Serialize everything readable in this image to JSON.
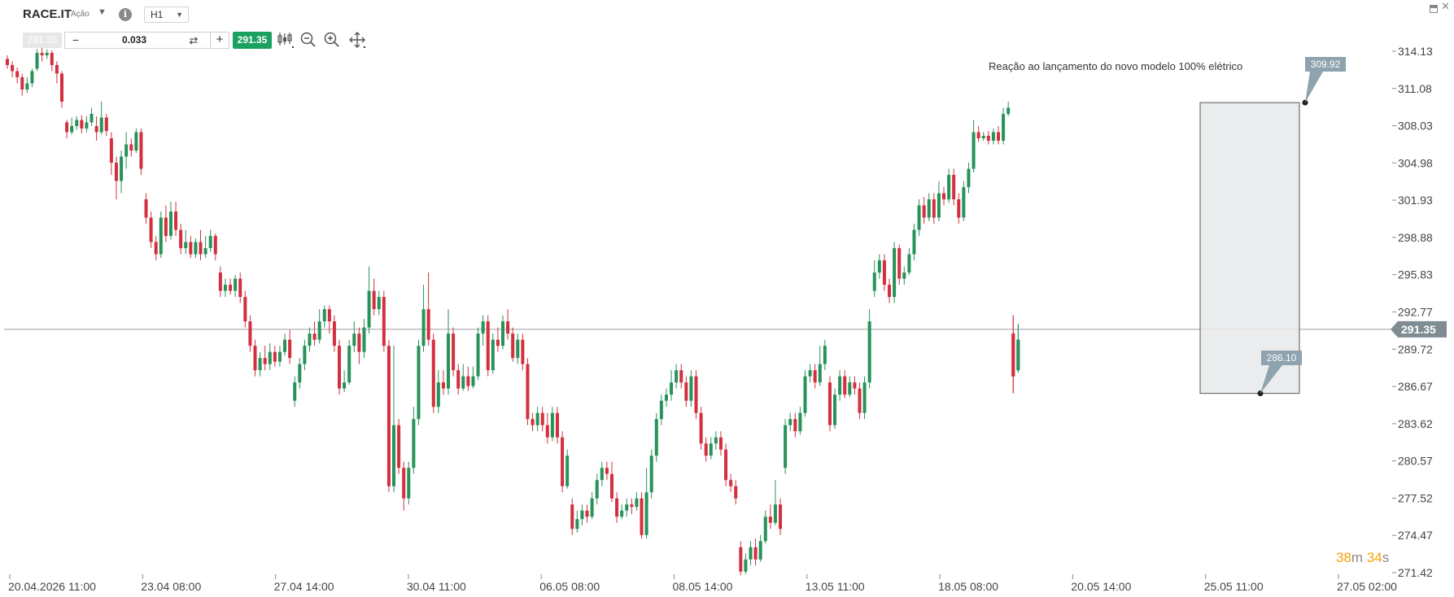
{
  "instrument": {
    "symbol": "RACE.IT",
    "asset_type": "Ação",
    "timeframe": "H1"
  },
  "trade_panel": {
    "bid_price": "291.35",
    "quantity": "0.033",
    "minus_label": "−",
    "plus_label": "+",
    "swap_glyph": "⇄",
    "ask_price": "291.35"
  },
  "tools": [
    {
      "name": "chart-type-icon"
    },
    {
      "name": "zoom-out-icon"
    },
    {
      "name": "zoom-in-icon"
    },
    {
      "name": "pan-crosshair-icon"
    }
  ],
  "countdown": {
    "minutes": "38",
    "m": "m",
    "seconds": "34",
    "s": "s"
  },
  "colors": {
    "up": "#27925a",
    "down": "#d32f3e",
    "price_line": "#9e9e9e",
    "price_tag": "#7f8c93",
    "label_box": "#8ea3ad",
    "rect_fill": "#e7e9ea",
    "ask_green": "#1aa05f"
  },
  "annotation": {
    "text": "Reação ao lançamento do novo modelo 100% elétrico",
    "top_price_label": "309.92",
    "bottom_price_label": "286.10",
    "top": 309.92,
    "bottom": 286.1
  },
  "chart_data": {
    "type": "candlestick",
    "title": "",
    "current_price": 291.35,
    "current_price_label": "291.35",
    "y_ticks": [
      "314.13",
      "311.08",
      "308.03",
      "304.98",
      "301.93",
      "298.88",
      "295.83",
      "292.77",
      "289.72",
      "286.67",
      "283.62",
      "280.57",
      "277.52",
      "274.47",
      "271.42"
    ],
    "x_ticks": [
      "20.04.2026 11:00",
      "23.04 08:00",
      "27.04 14:00",
      "30.04 11:00",
      "06.05 08:00",
      "08.05 14:00",
      "13.05 11:00",
      "18.05 08:00",
      "20.05 14:00",
      "25.05 11:00",
      "27.05 02:00"
    ],
    "ylim": [
      271.42,
      314.13
    ],
    "candles": [
      [
        313.5,
        313.0,
        313.8,
        312.7
      ],
      [
        313.0,
        312.5,
        313.3,
        312.0
      ],
      [
        312.5,
        312.0,
        312.8,
        311.5
      ],
      [
        312.0,
        311.0,
        312.3,
        310.5
      ],
      [
        311.0,
        311.5,
        312.0,
        310.7
      ],
      [
        311.5,
        312.5,
        312.7,
        311.2
      ],
      [
        312.7,
        314.0,
        314.3,
        312.5
      ],
      [
        314.0,
        313.8,
        314.4,
        313.3
      ],
      [
        313.8,
        314.0,
        314.3,
        313.5
      ],
      [
        314.0,
        313.0,
        314.2,
        312.5
      ],
      [
        313.0,
        312.3,
        313.3,
        311.5
      ],
      [
        312.3,
        310.0,
        312.5,
        309.5
      ],
      [
        308.3,
        307.5,
        308.5,
        307.0
      ],
      [
        307.5,
        308.0,
        308.7,
        307.3
      ],
      [
        308.0,
        308.5,
        308.8,
        307.7
      ],
      [
        308.5,
        307.8,
        308.9,
        307.4
      ],
      [
        307.8,
        308.3,
        308.8,
        307.5
      ],
      [
        308.3,
        309.0,
        309.5,
        308.0
      ],
      [
        308.0,
        307.5,
        308.8,
        306.8
      ],
      [
        307.5,
        308.7,
        310.0,
        307.3
      ],
      [
        308.7,
        307.6,
        309.0,
        307.2
      ],
      [
        307.0,
        305.0,
        307.5,
        304.0
      ],
      [
        305.0,
        303.5,
        305.5,
        302.0
      ],
      [
        303.5,
        305.5,
        306.0,
        302.5
      ],
      [
        305.5,
        306.5,
        307.5,
        304.5
      ],
      [
        306.5,
        306.0,
        307.0,
        305.5
      ],
      [
        306.0,
        307.5,
        307.8,
        305.8
      ],
      [
        307.5,
        304.5,
        307.8,
        304.0
      ],
      [
        302.0,
        300.5,
        302.5,
        300.0
      ],
      [
        300.5,
        298.5,
        301.0,
        298.0
      ],
      [
        298.5,
        297.5,
        299.0,
        297.0
      ],
      [
        297.5,
        300.5,
        301.0,
        297.2
      ],
      [
        300.5,
        299.0,
        301.5,
        298.5
      ],
      [
        299.0,
        301.0,
        301.8,
        298.7
      ],
      [
        301.0,
        299.5,
        301.8,
        299.0
      ],
      [
        299.5,
        298.0,
        300.0,
        297.5
      ],
      [
        298.0,
        298.5,
        299.5,
        297.5
      ],
      [
        298.5,
        297.5,
        299.0,
        297.2
      ],
      [
        297.5,
        298.5,
        298.8,
        297.2
      ],
      [
        298.5,
        297.5,
        299.5,
        297.0
      ],
      [
        297.5,
        298.0,
        299.0,
        297.2
      ],
      [
        298.0,
        299.0,
        299.5,
        297.7
      ],
      [
        299.0,
        297.5,
        299.2,
        297.0
      ],
      [
        296.0,
        294.5,
        296.5,
        294.0
      ],
      [
        294.5,
        295.0,
        295.5,
        294.0
      ],
      [
        295.0,
        294.5,
        295.5,
        294.2
      ],
      [
        294.5,
        295.5,
        295.8,
        294.0
      ],
      [
        295.5,
        294.0,
        296.0,
        293.5
      ],
      [
        294.0,
        292.0,
        294.5,
        291.5
      ],
      [
        292.0,
        290.0,
        292.5,
        289.5
      ],
      [
        290.0,
        288.0,
        290.5,
        287.5
      ],
      [
        288.0,
        289.0,
        289.5,
        287.5
      ],
      [
        289.0,
        288.5,
        290.0,
        288.0
      ],
      [
        288.5,
        289.5,
        290.2,
        288.0
      ],
      [
        289.5,
        288.7,
        290.0,
        288.3
      ],
      [
        288.7,
        289.5,
        290.0,
        288.3
      ],
      [
        289.5,
        290.5,
        291.0,
        289.2
      ],
      [
        290.5,
        289.0,
        291.3,
        288.5
      ],
      [
        285.5,
        287.0,
        287.5,
        285.0
      ],
      [
        287.0,
        288.5,
        289.0,
        286.5
      ],
      [
        288.5,
        290.0,
        290.5,
        288.0
      ],
      [
        290.0,
        291.0,
        291.5,
        289.5
      ],
      [
        291.0,
        290.5,
        292.0,
        290.0
      ],
      [
        290.5,
        292.0,
        293.0,
        290.2
      ],
      [
        292.0,
        293.0,
        293.3,
        291.5
      ],
      [
        293.0,
        292.0,
        293.3,
        291.0
      ],
      [
        292.0,
        290.0,
        292.5,
        289.5
      ],
      [
        290.0,
        286.5,
        290.5,
        286.0
      ],
      [
        286.5,
        287.0,
        288.0,
        286.2
      ],
      [
        287.0,
        290.0,
        290.5,
        286.8
      ],
      [
        290.0,
        291.0,
        292.0,
        289.5
      ],
      [
        291.0,
        289.5,
        291.5,
        288.5
      ],
      [
        289.5,
        291.5,
        292.2,
        289.0
      ],
      [
        291.5,
        294.5,
        296.5,
        291.0
      ],
      [
        294.5,
        293.0,
        295.5,
        292.5
      ],
      [
        293.0,
        294.0,
        294.5,
        292.5
      ],
      [
        294.0,
        290.0,
        294.5,
        289.5
      ],
      [
        290.0,
        278.5,
        290.5,
        278.0
      ],
      [
        278.5,
        283.5,
        290.0,
        278.0
      ],
      [
        283.5,
        280.0,
        284.0,
        279.5
      ],
      [
        280.0,
        277.5,
        280.5,
        276.5
      ],
      [
        277.5,
        280.0,
        280.5,
        277.0
      ],
      [
        280.0,
        284.0,
        285.0,
        279.5
      ],
      [
        284.0,
        290.0,
        290.5,
        283.5
      ],
      [
        290.0,
        293.0,
        295.0,
        289.5
      ],
      [
        293.0,
        290.5,
        296.0,
        290.0
      ],
      [
        290.5,
        285.0,
        291.0,
        284.5
      ],
      [
        285.0,
        287.0,
        288.0,
        284.5
      ],
      [
        287.0,
        286.5,
        288.0,
        286.0
      ],
      [
        286.5,
        291.0,
        293.0,
        286.0
      ],
      [
        291.0,
        288.0,
        291.5,
        287.5
      ],
      [
        288.0,
        286.5,
        288.5,
        286.0
      ],
      [
        286.5,
        287.5,
        288.5,
        286.3
      ],
      [
        287.5,
        286.7,
        288.3,
        286.3
      ],
      [
        286.7,
        287.5,
        288.3,
        286.5
      ],
      [
        287.5,
        291.0,
        291.5,
        287.2
      ],
      [
        291.0,
        292.0,
        292.5,
        290.0
      ],
      [
        292.0,
        288.0,
        292.5,
        287.5
      ],
      [
        288.0,
        290.5,
        291.0,
        287.7
      ],
      [
        290.5,
        290.0,
        291.5,
        289.5
      ],
      [
        290.0,
        292.0,
        292.5,
        289.7
      ],
      [
        292.0,
        291.0,
        293.0,
        290.5
      ],
      [
        291.0,
        289.0,
        291.5,
        288.7
      ],
      [
        289.0,
        290.5,
        291.0,
        288.5
      ],
      [
        290.5,
        288.5,
        291.0,
        288.0
      ],
      [
        288.5,
        284.0,
        289.0,
        283.5
      ],
      [
        284.0,
        283.5,
        284.5,
        283.0
      ],
      [
        283.5,
        284.5,
        285.0,
        283.0
      ],
      [
        284.5,
        283.5,
        285.0,
        283.0
      ],
      [
        283.5,
        282.5,
        284.5,
        282.0
      ],
      [
        282.5,
        284.5,
        285.0,
        282.2
      ],
      [
        284.5,
        282.5,
        285.0,
        282.0
      ],
      [
        282.5,
        278.5,
        283.0,
        278.0
      ],
      [
        278.5,
        281.0,
        281.5,
        278.3
      ],
      [
        277.0,
        275.0,
        277.5,
        274.5
      ],
      [
        275.0,
        275.8,
        276.5,
        274.7
      ],
      [
        275.8,
        276.5,
        277.0,
        275.3
      ],
      [
        276.5,
        276.0,
        277.0,
        275.5
      ],
      [
        276.0,
        277.5,
        278.0,
        275.8
      ],
      [
        277.5,
        279.0,
        279.5,
        277.0
      ],
      [
        279.0,
        280.0,
        280.5,
        278.5
      ],
      [
        280.0,
        279.5,
        280.5,
        279.0
      ],
      [
        279.5,
        277.5,
        280.5,
        277.2
      ],
      [
        277.5,
        276.0,
        278.0,
        275.5
      ],
      [
        276.0,
        276.5,
        277.0,
        275.8
      ],
      [
        276.5,
        277.0,
        277.5,
        276.0
      ],
      [
        277.0,
        276.8,
        277.5,
        276.2
      ],
      [
        276.8,
        277.5,
        278.0,
        276.5
      ],
      [
        277.5,
        274.5,
        278.0,
        274.2
      ],
      [
        274.5,
        278.0,
        280.0,
        274.2
      ],
      [
        278.0,
        281.0,
        281.5,
        277.5
      ],
      [
        281.0,
        284.0,
        284.5,
        280.5
      ],
      [
        284.0,
        285.5,
        286.0,
        283.5
      ],
      [
        285.5,
        286.0,
        286.5,
        285.0
      ],
      [
        286.0,
        287.0,
        288.0,
        285.5
      ],
      [
        287.0,
        288.0,
        288.5,
        286.5
      ],
      [
        288.0,
        287.0,
        288.5,
        286.5
      ],
      [
        287.0,
        285.5,
        287.5,
        285.0
      ],
      [
        285.5,
        287.5,
        288.0,
        285.0
      ],
      [
        287.5,
        284.5,
        288.0,
        284.0
      ],
      [
        284.5,
        282.0,
        285.0,
        281.5
      ],
      [
        282.0,
        281.0,
        282.5,
        280.5
      ],
      [
        281.0,
        282.0,
        282.5,
        280.7
      ],
      [
        282.0,
        282.5,
        283.0,
        281.5
      ],
      [
        282.5,
        281.5,
        283.0,
        281.0
      ],
      [
        281.5,
        279.0,
        282.0,
        278.5
      ],
      [
        279.0,
        278.5,
        279.5,
        278.0
      ],
      [
        278.5,
        277.5,
        279.0,
        277.0
      ],
      [
        273.5,
        271.5,
        274.0,
        271.2
      ],
      [
        271.5,
        272.5,
        273.0,
        271.3
      ],
      [
        272.5,
        273.5,
        274.0,
        272.0
      ],
      [
        273.5,
        272.5,
        274.2,
        272.0
      ],
      [
        272.5,
        274.0,
        274.5,
        272.3
      ],
      [
        274.0,
        276.0,
        276.5,
        273.8
      ],
      [
        276.0,
        275.5,
        277.0,
        275.0
      ],
      [
        275.5,
        277.0,
        279.0,
        275.3
      ],
      [
        277.0,
        275.0,
        277.5,
        274.5
      ],
      [
        280.0,
        283.5,
        284.0,
        279.5
      ],
      [
        283.5,
        284.0,
        284.5,
        283.0
      ],
      [
        284.0,
        283.0,
        284.5,
        282.5
      ],
      [
        283.0,
        284.5,
        285.0,
        282.7
      ],
      [
        284.5,
        287.5,
        288.0,
        284.2
      ],
      [
        287.5,
        288.0,
        288.5,
        287.0
      ],
      [
        288.0,
        287.0,
        288.5,
        286.5
      ],
      [
        287.0,
        288.5,
        290.0,
        286.7
      ],
      [
        288.5,
        290.0,
        290.5,
        288.0
      ],
      [
        287.0,
        283.5,
        287.5,
        283.0
      ],
      [
        283.5,
        286.0,
        286.5,
        283.2
      ],
      [
        286.0,
        287.5,
        288.0,
        285.5
      ],
      [
        287.5,
        286.0,
        288.0,
        285.7
      ],
      [
        286.0,
        287.0,
        287.5,
        285.8
      ],
      [
        287.0,
        286.5,
        287.5,
        286.0
      ],
      [
        286.5,
        284.5,
        287.0,
        284.0
      ],
      [
        284.5,
        287.0,
        287.5,
        284.0
      ],
      [
        287.0,
        292.0,
        293.0,
        286.5
      ],
      [
        294.5,
        296.0,
        297.0,
        294.0
      ],
      [
        296.0,
        297.0,
        297.5,
        295.5
      ],
      [
        297.0,
        295.0,
        297.5,
        294.5
      ],
      [
        295.0,
        294.0,
        295.5,
        293.5
      ],
      [
        294.0,
        298.0,
        298.5,
        293.5
      ],
      [
        298.0,
        295.5,
        298.3,
        295.0
      ],
      [
        295.5,
        296.0,
        296.5,
        295.0
      ],
      [
        296.0,
        297.5,
        298.0,
        295.8
      ],
      [
        297.5,
        299.5,
        300.0,
        297.0
      ],
      [
        299.5,
        301.5,
        302.0,
        299.0
      ],
      [
        301.5,
        300.5,
        302.2,
        300.0
      ],
      [
        300.5,
        302.0,
        302.5,
        300.2
      ],
      [
        302.0,
        300.5,
        302.5,
        300.0
      ],
      [
        300.5,
        302.5,
        303.5,
        300.2
      ],
      [
        302.5,
        302.0,
        303.0,
        301.5
      ],
      [
        302.0,
        304.0,
        304.5,
        301.7
      ],
      [
        304.0,
        302.0,
        304.5,
        301.5
      ],
      [
        302.0,
        300.5,
        302.5,
        300.0
      ],
      [
        300.5,
        303.0,
        303.5,
        300.2
      ],
      [
        303.0,
        304.5,
        305.0,
        302.5
      ],
      [
        304.5,
        307.5,
        308.5,
        304.2
      ],
      [
        307.5,
        307.0,
        308.0,
        306.7
      ],
      [
        307.0,
        307.2,
        307.5,
        306.8
      ],
      [
        307.2,
        306.8,
        307.6,
        306.5
      ],
      [
        306.8,
        307.5,
        307.8,
        306.5
      ],
      [
        307.5,
        306.8,
        308.0,
        306.5
      ],
      [
        306.8,
        309.0,
        309.5,
        306.5
      ],
      [
        309.0,
        309.5,
        310.0,
        308.8
      ],
      [
        291.0,
        287.5,
        292.5,
        286.1
      ],
      [
        288.0,
        290.5,
        291.8,
        287.8
      ]
    ]
  }
}
